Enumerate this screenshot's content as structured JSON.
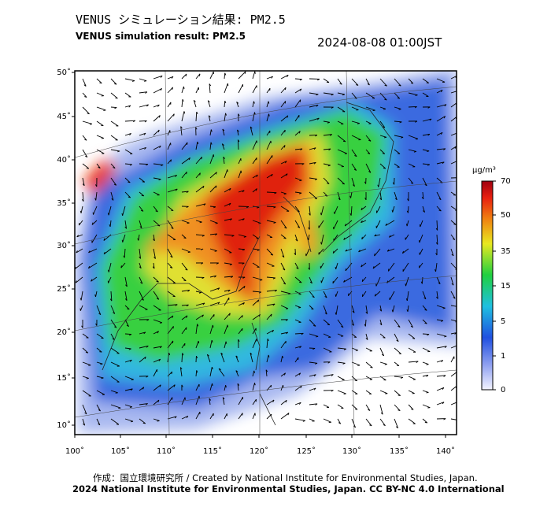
{
  "header": {
    "title": "VENUS シミュレーション結果: PM2.5",
    "subtitle": "VENUS simulation result: PM2.5",
    "timestamp": "2024-08-08 01:00JST"
  },
  "map": {
    "lat_labels": [
      "50˚",
      "45˚",
      "40˚",
      "35˚",
      "30˚",
      "25˚",
      "20˚",
      "15˚",
      "10˚"
    ],
    "lon_labels": [
      "100˚",
      "105˚",
      "110˚",
      "115˚",
      "120˚",
      "125˚",
      "130˚",
      "135˚",
      "140˚"
    ]
  },
  "colorbar": {
    "unit": "μg/m³",
    "ticks": [
      70,
      50,
      35,
      15,
      5,
      1,
      0
    ]
  },
  "footer": {
    "credit": "作成：国立環境研究所 / Created by National Institute for Environmental Studies, Japan.",
    "license": "2024 National Institute for Environmental Studies, Japan. CC BY-NC 4.0 International"
  }
}
